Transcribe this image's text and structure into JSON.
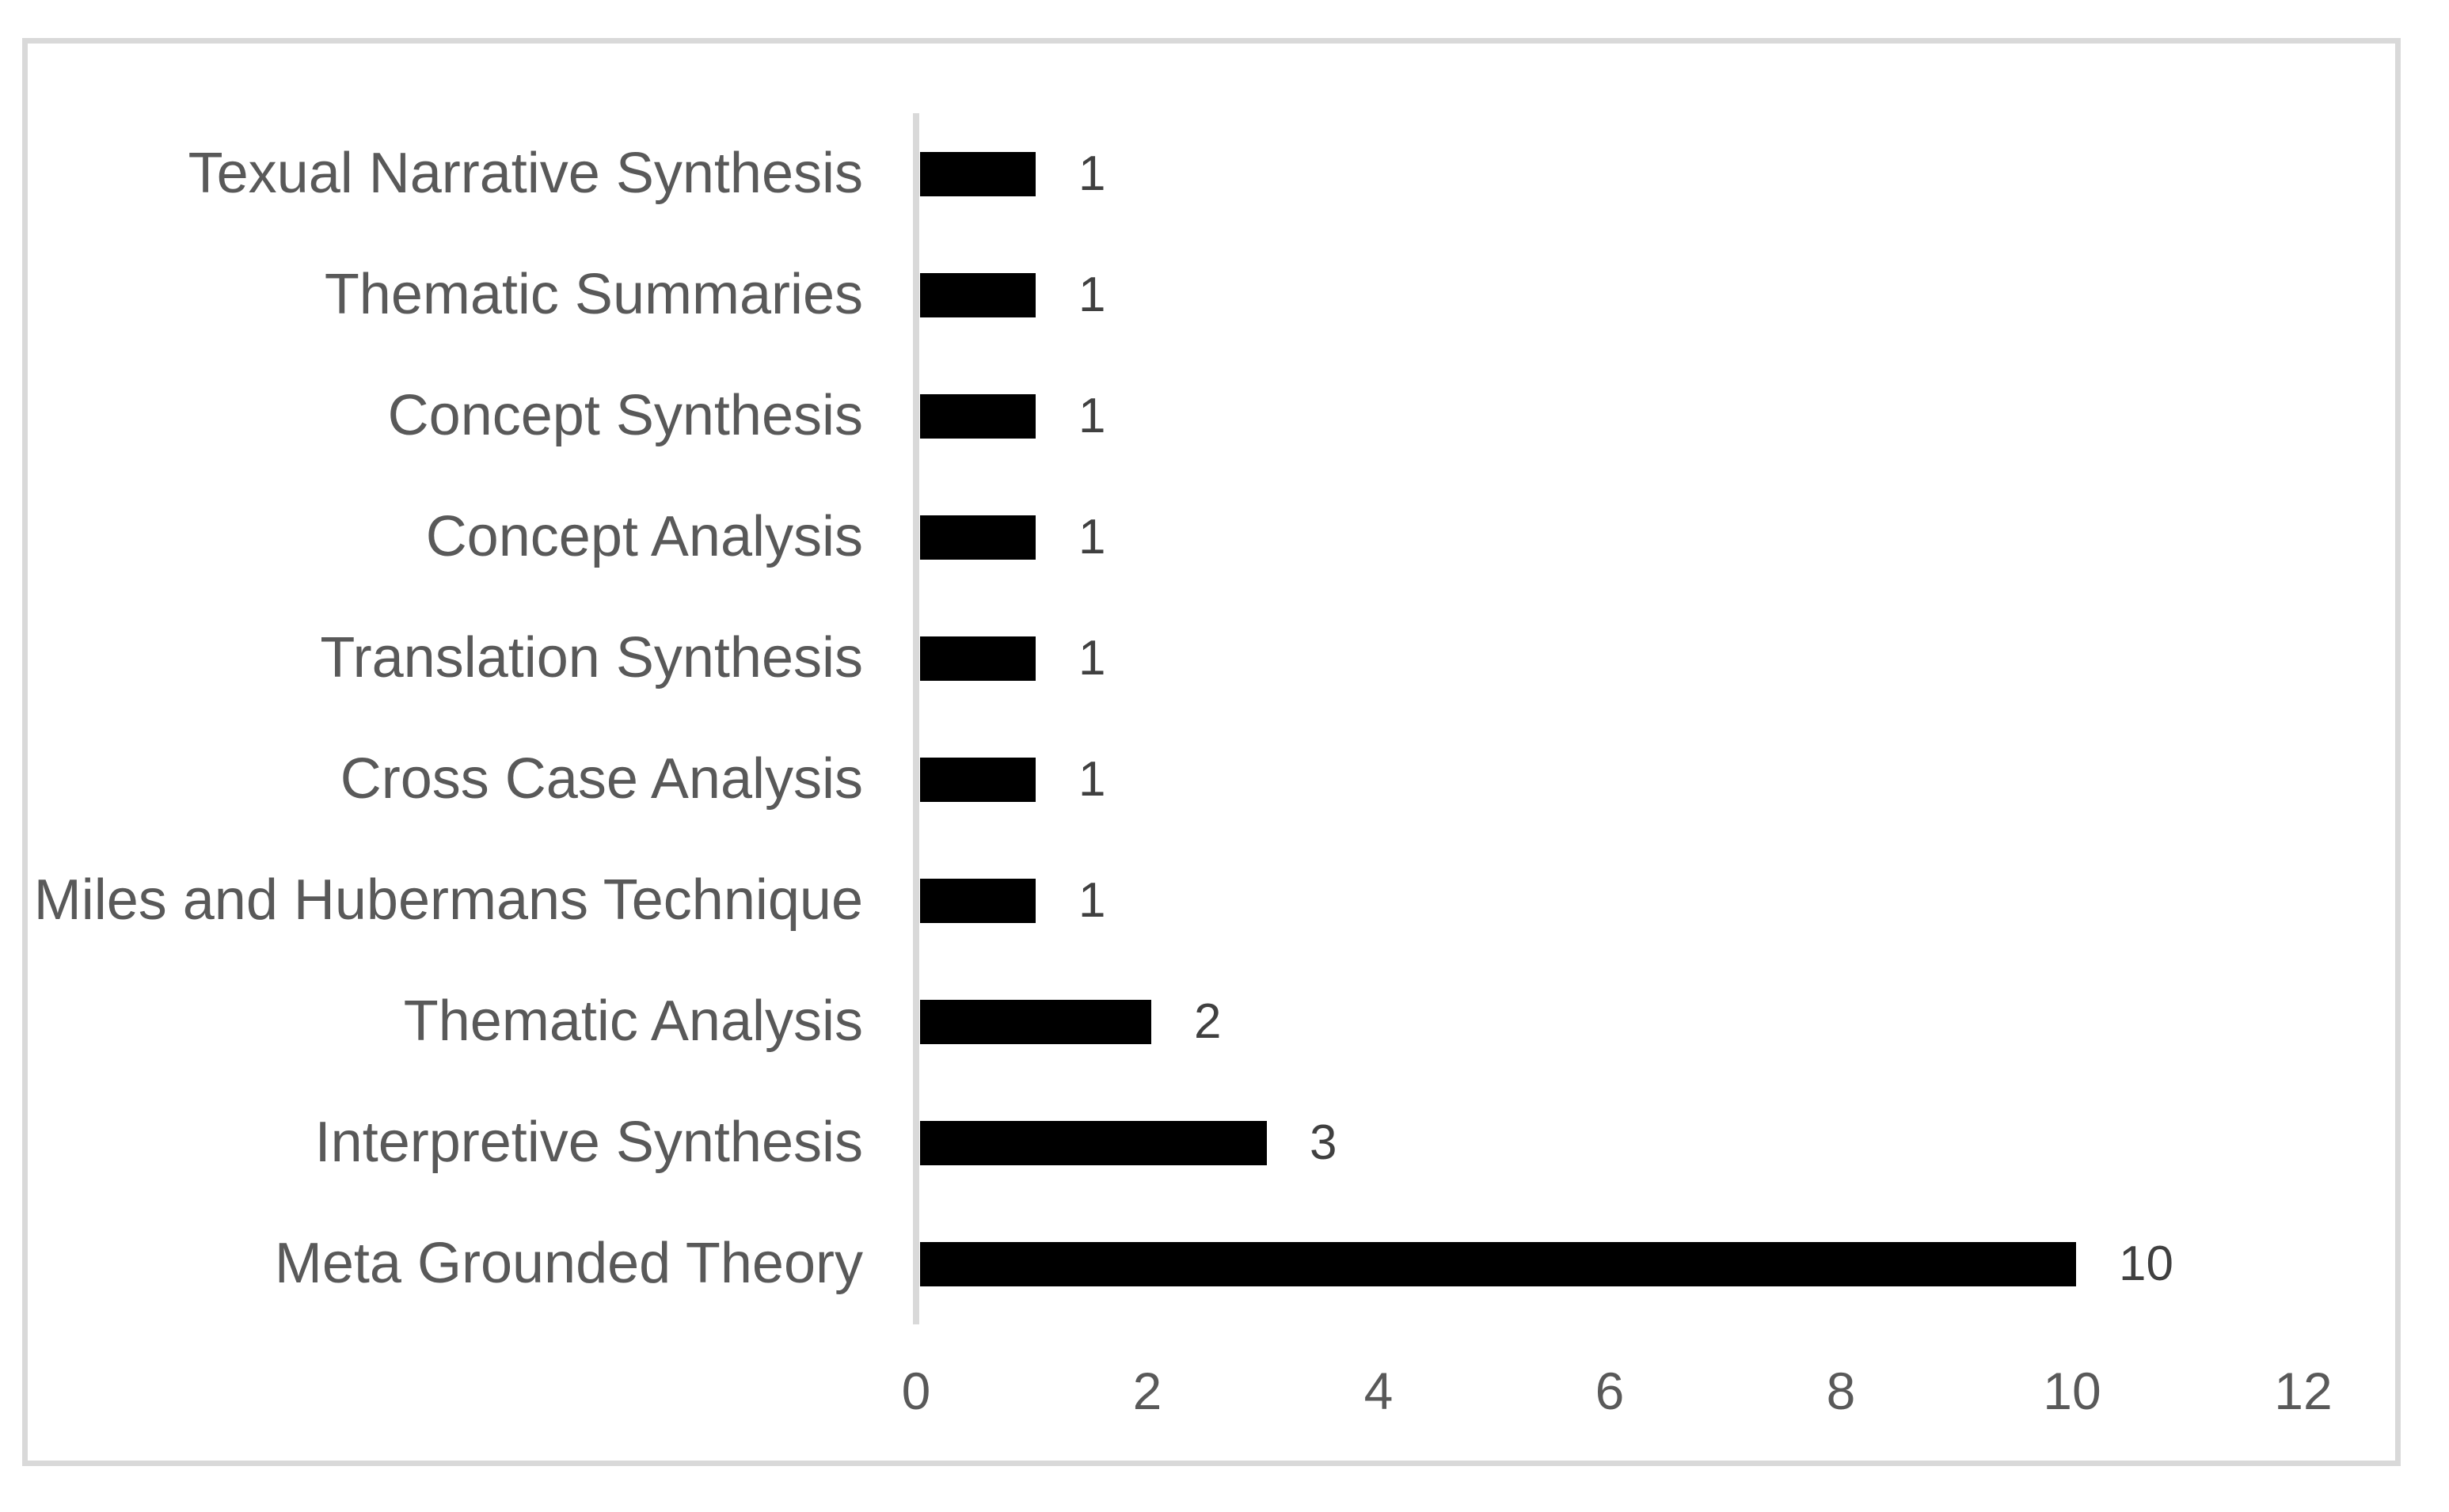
{
  "chart_data": {
    "type": "bar",
    "orientation": "horizontal",
    "title": "",
    "xlabel": "",
    "ylabel": "",
    "categories": [
      "Texual Narrative Synthesis",
      "Thematic Summaries",
      "Concept Synthesis",
      "Concept Analysis",
      "Translation Synthesis",
      "Cross Case Analysis",
      "Miles and Hubermans Technique",
      "Thematic Analysis",
      "Interpretive Synthesis",
      "Meta Grounded Theory"
    ],
    "values": [
      1,
      1,
      1,
      1,
      1,
      1,
      1,
      2,
      3,
      10
    ],
    "data_labels_visible": true,
    "xlim": [
      0,
      12
    ],
    "x_ticks": [
      0,
      2,
      4,
      6,
      8,
      10,
      12
    ],
    "grid": false,
    "legend": false,
    "colors": {
      "bar": "#000000",
      "category_labels": "#595959",
      "value_labels": "#404040",
      "tick_labels": "#595959",
      "axis_line": "#d9d9d9",
      "frame_border": "#d9d9d9",
      "background": "#ffffff"
    }
  }
}
